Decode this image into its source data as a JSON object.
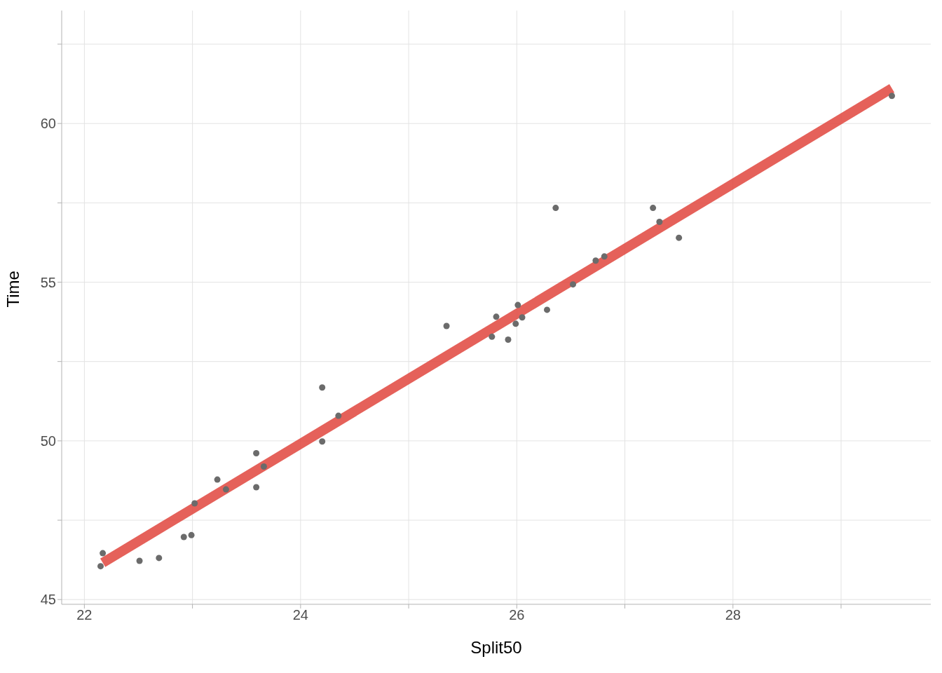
{
  "chart_data": {
    "type": "scatter",
    "xlabel": "Split50",
    "ylabel": "Time",
    "xlim": [
      21.79,
      29.83
    ],
    "ylim": [
      44.85,
      63.56
    ],
    "xticks": [
      22,
      {
        "value": 23,
        "label": null
      },
      24,
      {
        "value": 25,
        "label": null
      },
      26,
      {
        "value": 27,
        "label": null
      },
      28,
      {
        "value": 29,
        "label": null
      }
    ],
    "yticks": [
      45,
      {
        "value": 47.5,
        "label": null
      },
      50,
      {
        "value": 52.5,
        "label": null
      },
      55,
      {
        "value": 57.5,
        "label": null
      },
      60,
      {
        "value": 62.5,
        "label": null
      }
    ],
    "grid": true,
    "series": [
      {
        "marker": "circle",
        "color": "#6b6b6b",
        "x": [
          22.15,
          22.17,
          22.51,
          22.69,
          22.92,
          22.99,
          23.02,
          23.23,
          23.31,
          23.59,
          23.59,
          23.66,
          24.2,
          24.2,
          24.35,
          25.35,
          25.77,
          25.81,
          25.92,
          25.99,
          26.01,
          26.05,
          26.28,
          26.36,
          26.52,
          26.73,
          26.81,
          27.26,
          27.32,
          27.5,
          29.47
        ],
        "values": [
          46.05,
          46.46,
          46.22,
          46.31,
          46.97,
          47.03,
          48.03,
          48.78,
          48.47,
          49.61,
          48.54,
          49.19,
          51.68,
          49.98,
          50.79,
          53.62,
          53.28,
          53.91,
          53.19,
          53.69,
          54.28,
          53.89,
          54.13,
          57.34,
          54.93,
          55.68,
          55.81,
          57.34,
          56.9,
          56.4,
          60.87
        ]
      },
      {
        "type": "line",
        "color": "#e0453d",
        "x": [
          22.17,
          29.47
        ],
        "values": [
          46.16,
          61.11
        ]
      }
    ]
  }
}
